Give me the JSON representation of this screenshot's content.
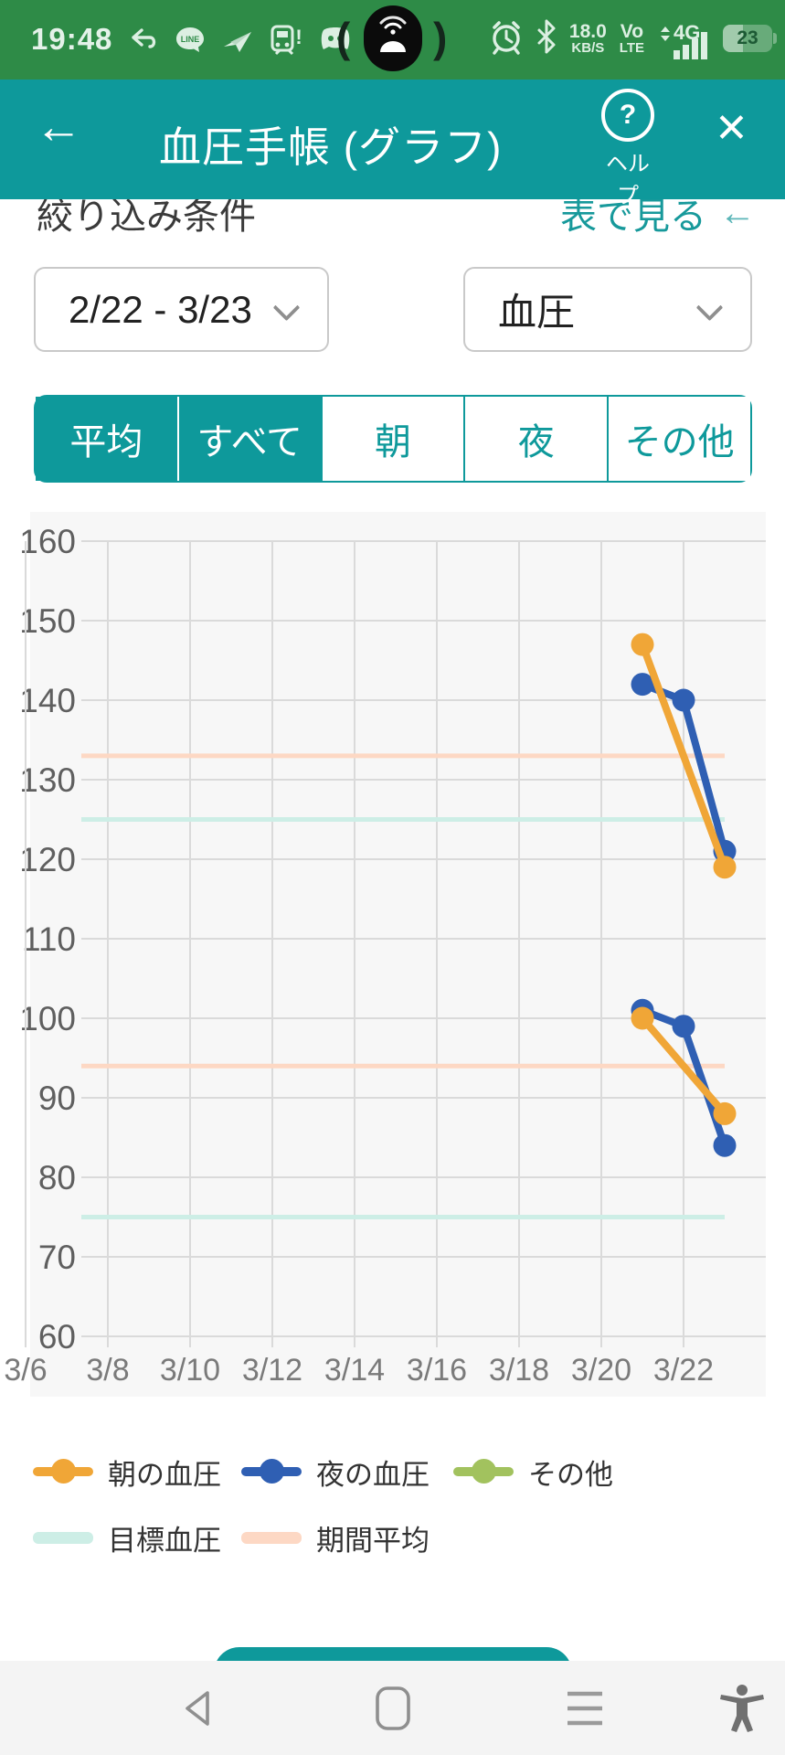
{
  "status_bar": {
    "time": "19:48",
    "kbps_value": "18.0",
    "kbps_unit": "KB/S",
    "volte_line1": "Vo",
    "volte_line2": "LTE",
    "network": "4G",
    "battery_percent": "23"
  },
  "header": {
    "back_icon": "←",
    "title": "血圧手帳 (グラフ)",
    "help_mark": "?",
    "help_label": "ヘルプ",
    "close_icon": "✕"
  },
  "filter": {
    "label": "絞り込み条件",
    "table_link": "表で見る",
    "table_link_arrow": "←",
    "date_range_value": "2/22 - 3/23",
    "metric_value": "血圧"
  },
  "tabs": [
    {
      "label": "平均",
      "selected": true
    },
    {
      "label": "すべて",
      "selected": true
    },
    {
      "label": "朝",
      "selected": false
    },
    {
      "label": "夜",
      "selected": false
    },
    {
      "label": "その他",
      "selected": false
    }
  ],
  "chart_data": {
    "type": "line",
    "ylim": [
      60,
      160
    ],
    "ytick": 10,
    "x_labels": [
      "3/6",
      "3/8",
      "3/10",
      "3/12",
      "3/14",
      "3/16",
      "3/18",
      "3/20",
      "3/22"
    ],
    "x_range_days": [
      "3/6",
      "3/23"
    ],
    "grid": true,
    "series": [
      {
        "name": "夜の血圧 (上)",
        "color": "#2f5fb3",
        "points": [
          {
            "x": "3/21",
            "y": 142
          },
          {
            "x": "3/22",
            "y": 140
          },
          {
            "x": "3/23",
            "y": 121
          }
        ]
      },
      {
        "name": "夜の血圧 (下)",
        "color": "#2f5fb3",
        "points": [
          {
            "x": "3/21",
            "y": 101
          },
          {
            "x": "3/22",
            "y": 99
          },
          {
            "x": "3/23",
            "y": 84
          }
        ]
      },
      {
        "name": "朝の血圧 (上)",
        "color": "#f0a637",
        "points": [
          {
            "x": "3/21",
            "y": 147
          },
          {
            "x": "3/23",
            "y": 119
          }
        ]
      },
      {
        "name": "朝の血圧 (下)",
        "color": "#f0a637",
        "points": [
          {
            "x": "3/21",
            "y": 100
          },
          {
            "x": "3/23",
            "y": 88
          }
        ]
      }
    ],
    "reference_lines": [
      {
        "name": "期間平均 (上)",
        "color": "#fdd8c4",
        "y": 133
      },
      {
        "name": "期間平均 (下)",
        "color": "#fdd8c4",
        "y": 94
      },
      {
        "name": "目標血圧 (上)",
        "color": "#cdeee6",
        "y": 125
      },
      {
        "name": "目標血圧 (下)",
        "color": "#cdeee6",
        "y": 75
      }
    ]
  },
  "legend": {
    "row1": [
      {
        "label": "朝の血圧",
        "color": "#f0a637"
      },
      {
        "label": "夜の血圧",
        "color": "#2f5fb3"
      },
      {
        "label": "その他",
        "color": "#a2c25e"
      }
    ],
    "row2": [
      {
        "label": "目標血圧",
        "color": "#cdeee6"
      },
      {
        "label": "期間平均",
        "color": "#fdd8c4"
      }
    ]
  },
  "colors": {
    "status_bar_green": "#2e8b47",
    "header_teal": "#0e999b",
    "link_teal": "#17999b",
    "chart_bg": "#f7f7f7",
    "gridline": "#dadada",
    "morning_orange": "#f0a637",
    "evening_blue": "#2f5fb3",
    "other_green": "#a2c25e",
    "target_mint": "#cdeee6",
    "average_salmon": "#fdd8c4"
  }
}
